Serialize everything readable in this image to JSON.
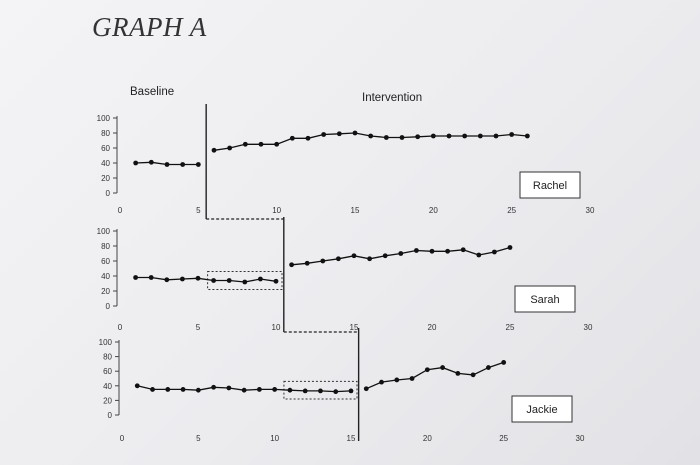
{
  "heading": "GRAPH A",
  "phase_labels": {
    "baseline": "Baseline",
    "intervention": "Intervention"
  },
  "chart_data": [
    {
      "type": "line",
      "participant": "Rachel",
      "x_ticks": [
        0,
        5,
        10,
        15,
        20,
        25,
        30
      ],
      "y_ticks": [
        0,
        20,
        40,
        60,
        80,
        100
      ],
      "xlim": [
        0,
        30
      ],
      "ylim": [
        0,
        100
      ],
      "phase_change_after": 5.5,
      "highlight_range": null,
      "x": [
        1,
        2,
        3,
        4,
        5,
        6,
        7,
        8,
        9,
        10,
        11,
        12,
        13,
        14,
        15,
        16,
        17,
        18,
        19,
        20,
        21,
        22,
        23,
        24,
        25,
        26
      ],
      "y": [
        40,
        41,
        38,
        38,
        38,
        57,
        60,
        65,
        65,
        65,
        73,
        73,
        78,
        79,
        80,
        76,
        74,
        74,
        75,
        76,
        76,
        76,
        76,
        76,
        78,
        76
      ]
    },
    {
      "type": "line",
      "participant": "Sarah",
      "x_ticks": [
        0,
        5,
        10,
        15,
        20,
        25,
        30
      ],
      "y_ticks": [
        0,
        20,
        40,
        60,
        80,
        100
      ],
      "xlim": [
        0,
        30
      ],
      "ylim": [
        0,
        100
      ],
      "phase_change_after": 10.5,
      "highlight_range": [
        6,
        10
      ],
      "x": [
        1,
        2,
        3,
        4,
        5,
        6,
        7,
        8,
        9,
        10,
        11,
        12,
        13,
        14,
        15,
        16,
        17,
        18,
        19,
        20,
        21,
        22,
        23,
        24,
        25
      ],
      "y": [
        38,
        38,
        35,
        36,
        37,
        34,
        34,
        32,
        36,
        33,
        55,
        57,
        60,
        63,
        67,
        63,
        67,
        70,
        74,
        73,
        73,
        75,
        68,
        72,
        78
      ]
    },
    {
      "type": "line",
      "participant": "Jackie",
      "x_ticks": [
        0,
        5,
        10,
        15,
        20,
        25,
        30
      ],
      "y_ticks": [
        0,
        20,
        40,
        60,
        80,
        100
      ],
      "xlim": [
        0,
        30
      ],
      "ylim": [
        0,
        100
      ],
      "phase_change_after": 15.5,
      "highlight_range": [
        11,
        15
      ],
      "x": [
        1,
        2,
        3,
        4,
        5,
        6,
        7,
        8,
        9,
        10,
        11,
        12,
        13,
        14,
        15,
        16,
        17,
        18,
        19,
        20,
        21,
        22,
        23,
        24,
        25
      ],
      "y": [
        40,
        35,
        35,
        35,
        34,
        38,
        37,
        34,
        35,
        35,
        34,
        33,
        33,
        32,
        33,
        36,
        45,
        48,
        50,
        62,
        65,
        57,
        55,
        65,
        72
      ]
    }
  ]
}
